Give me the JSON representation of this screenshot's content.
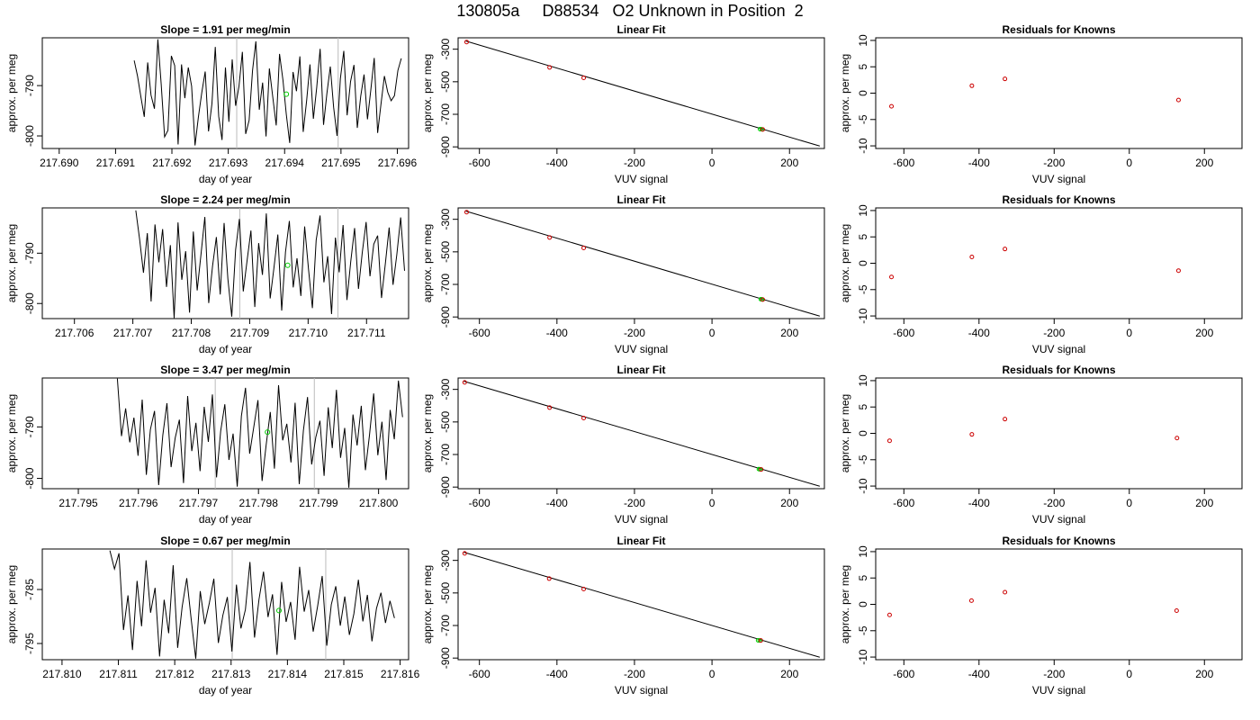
{
  "header": {
    "title": "130805a     D88534   O2 Unknown in Position  2"
  },
  "colors": {
    "trace": "#000000",
    "fit_line": "#000000",
    "known_points": "#cc0000",
    "unknown_points": "#00cc00",
    "frame": "#000000",
    "marker_lines": "#bbbbbb"
  },
  "chart_data": [
    {
      "row": 1,
      "type": "line",
      "title": "Slope =  1.91  per meg/min",
      "xlabel": "day of year",
      "ylabel": "approx. per meg",
      "xlim": [
        217.6897,
        217.6962
      ],
      "ylim": [
        -802.5,
        -780.5
      ],
      "xticks": [
        "217.690",
        "217.691",
        "217.692",
        "217.693",
        "217.694",
        "217.695",
        "217.696"
      ],
      "yticks": [
        "-790",
        "-800"
      ],
      "ytick_values": [
        -790,
        -800
      ],
      "series": [
        {
          "x_start": 217.69133,
          "x_end": 217.69607,
          "values": [
            -785.0,
            -788.1,
            -792.3,
            -796.2,
            -785.4,
            -791.9,
            -794.6,
            -780.8,
            -789.7,
            -800.2,
            -798.9,
            -784.1,
            -786.0,
            -801.7,
            -785.8,
            -792.5,
            -786.4,
            -790.1,
            -801.9,
            -796.3,
            -791.4,
            -787.2,
            -799.1,
            -793.6,
            -782.3,
            -796.1,
            -800.8,
            -786.4,
            -797.2,
            -784.8,
            -794.0,
            -790.2,
            -783.3,
            -799.6,
            -796.9,
            -787.0,
            -781.2,
            -794.8,
            -789.4,
            -800.1,
            -786.6,
            -792.3,
            -797.9,
            -783.7,
            -788.9,
            -795.7,
            -801.4,
            -787.3,
            -791.1,
            -784.2,
            -799.2,
            -793.0,
            -785.8,
            -796.6,
            -790.4,
            -782.7,
            -797.8,
            -791.6,
            -786.2,
            -794.3,
            -800.0,
            -788.6,
            -783.1,
            -795.9,
            -789.2,
            -785.9,
            -798.4,
            -792.1,
            -787.8,
            -796.7,
            -790.9,
            -784.5,
            -799.4,
            -793.7,
            -788.1,
            -791.3,
            -793.0,
            -792.0,
            -787.0,
            -784.6
          ]
        }
      ],
      "unknown_point": {
        "x": 217.69403,
        "y": -791.7
      },
      "marker_lines": [
        217.69315,
        217.69495
      ]
    },
    {
      "row": 1,
      "type": "scatter",
      "title": "Linear Fit",
      "xlabel": "VUV signal",
      "ylabel": "approx. per meg",
      "xlim": [
        -655,
        290
      ],
      "ylim": [
        -910,
        -230
      ],
      "xticks": [
        -600,
        -400,
        -200,
        0,
        200
      ],
      "yticks": [
        -300,
        -500,
        -700,
        -900
      ],
      "fit_line": {
        "x": [
          -635,
          278
        ],
        "y": [
          -250,
          -895
        ]
      },
      "knowns": {
        "x": [
          -633,
          -419,
          -331,
          131
        ],
        "y": [
          -256,
          -412,
          -476,
          -793
        ]
      },
      "unknowns": {
        "x": [
          124,
          128
        ],
        "y": [
          -791,
          -792
        ]
      }
    },
    {
      "row": 1,
      "type": "scatter",
      "title": "Residuals for Knowns",
      "xlabel": "VUV signal",
      "ylabel": "approx. per meg",
      "xlim": [
        -675,
        300
      ],
      "ylim": [
        -10.5,
        10.5
      ],
      "xticks": [
        -600,
        -400,
        -200,
        0,
        200
      ],
      "yticks": [
        10,
        5,
        0,
        -5,
        -10
      ],
      "knowns": {
        "x": [
          -633,
          -419,
          -331,
          131
        ],
        "y": [
          -2.5,
          1.4,
          2.7,
          -1.3
        ]
      }
    },
    {
      "row": 2,
      "type": "line",
      "title": "Slope =  2.24  per meg/min",
      "xlabel": "day of year",
      "ylabel": "approx. per meg",
      "xlim": [
        217.70545,
        217.71172
      ],
      "ylim": [
        -803,
        -781
      ],
      "xticks": [
        "217.706",
        "217.707",
        "217.708",
        "217.709",
        "217.710",
        "217.711"
      ],
      "yticks": [
        "-790",
        "-800"
      ],
      "ytick_values": [
        -790,
        -800
      ],
      "series": [
        {
          "x_start": 217.70705,
          "x_end": 217.71165,
          "values": [
            -781.5,
            -787.2,
            -793.9,
            -786.0,
            -799.6,
            -784.3,
            -791.8,
            -785.2,
            -796.7,
            -788.4,
            -802.9,
            -783.9,
            -795.3,
            -789.6,
            -801.8,
            -785.7,
            -797.4,
            -790.1,
            -782.8,
            -799.9,
            -792.5,
            -786.8,
            -798.2,
            -784.0,
            -795.1,
            -802.6,
            -789.3,
            -783.2,
            -797.6,
            -791.4,
            -785.5,
            -800.7,
            -788.0,
            -794.3,
            -782.1,
            -799.0,
            -792.9,
            -786.3,
            -801.4,
            -789.8,
            -783.6,
            -796.8,
            -791.0,
            -798.5,
            -784.7,
            -793.2,
            -800.9,
            -787.4,
            -782.5,
            -795.8,
            -790.6,
            -802.1,
            -786.9,
            -793.8,
            -784.4,
            -799.3,
            -791.7,
            -785.0,
            -797.1,
            -789.9,
            -783.8,
            -794.6,
            -788.2,
            -786.5,
            -798.9,
            -792.2,
            -784.9,
            -796.3,
            -790.3,
            -782.9,
            -793.5
          ]
        }
      ],
      "unknown_point": {
        "x": 217.70965,
        "y": -792.4
      },
      "marker_lines": [
        217.70883,
        217.71051
      ]
    },
    {
      "row": 2,
      "type": "scatter",
      "title": "Linear Fit",
      "xlabel": "VUV signal",
      "ylabel": "approx. per meg",
      "xlim": [
        -655,
        290
      ],
      "ylim": [
        -910,
        -230
      ],
      "xticks": [
        -600,
        -400,
        -200,
        0,
        200
      ],
      "yticks": [
        -300,
        -500,
        -700,
        -900
      ],
      "fit_line": {
        "x": [
          -635,
          278
        ],
        "y": [
          -250,
          -895
        ]
      },
      "knowns": {
        "x": [
          -633,
          -419,
          -331,
          131
        ],
        "y": [
          -256,
          -412,
          -476,
          -793
        ]
      },
      "unknowns": {
        "x": [
          126,
          129
        ],
        "y": [
          -791,
          -792
        ]
      }
    },
    {
      "row": 2,
      "type": "scatter",
      "title": "Residuals for Knowns",
      "xlabel": "VUV signal",
      "ylabel": "approx. per meg",
      "xlim": [
        -675,
        300
      ],
      "ylim": [
        -10.5,
        10.5
      ],
      "xticks": [
        -600,
        -400,
        -200,
        0,
        200
      ],
      "yticks": [
        10,
        5,
        0,
        -5,
        -10
      ],
      "knowns": {
        "x": [
          -633,
          -419,
          -331,
          131
        ],
        "y": [
          -2.6,
          1.2,
          2.7,
          -1.4
        ]
      }
    },
    {
      "row": 3,
      "type": "line",
      "title": "Slope =  3.47  per meg/min",
      "xlabel": "day of year",
      "ylabel": "approx. per meg",
      "xlim": [
        217.7944,
        217.8005
      ],
      "ylim": [
        -802,
        -780.5
      ],
      "xticks": [
        "217.795",
        "217.796",
        "217.797",
        "217.798",
        "217.799",
        "217.800"
      ],
      "yticks": [
        "-790",
        "-800"
      ],
      "ytick_values": [
        -790,
        -800
      ],
      "series": [
        {
          "x_start": 217.79565,
          "x_end": 217.8004,
          "values": [
            -780.6,
            -791.8,
            -786.4,
            -793.0,
            -788.2,
            -795.6,
            -784.7,
            -799.3,
            -790.5,
            -786.9,
            -801.3,
            -791.6,
            -785.4,
            -797.8,
            -792.1,
            -788.6,
            -800.9,
            -784.0,
            -794.7,
            -789.2,
            -798.6,
            -786.1,
            -792.9,
            -783.7,
            -799.8,
            -790.8,
            -785.6,
            -796.4,
            -791.3,
            -801.6,
            -787.9,
            -782.4,
            -795.2,
            -790.0,
            -784.8,
            -800.5,
            -793.4,
            -787.1,
            -798.1,
            -781.9,
            -792.6,
            -789.4,
            -796.9,
            -785.3,
            -801.1,
            -790.7,
            -784.2,
            -797.3,
            -792.0,
            -788.8,
            -799.5,
            -786.2,
            -794.1,
            -782.8,
            -796.0,
            -790.2,
            -801.8,
            -787.6,
            -793.6,
            -785.9,
            -798.4,
            -791.5,
            -783.5,
            -795.5,
            -789.0,
            -800.3,
            -786.7,
            -792.4,
            -781.0,
            -788.1
          ]
        }
      ],
      "unknown_point": {
        "x": 217.79815,
        "y": -791.0
      },
      "marker_lines": [
        217.79728,
        217.79893
      ]
    },
    {
      "row": 3,
      "type": "scatter",
      "title": "Linear Fit",
      "xlabel": "VUV signal",
      "ylabel": "approx. per meg",
      "xlim": [
        -655,
        290
      ],
      "ylim": [
        -910,
        -230
      ],
      "xticks": [
        -600,
        -400,
        -200,
        0,
        200
      ],
      "yticks": [
        -300,
        -500,
        -700,
        -900
      ],
      "fit_line": {
        "x": [
          -640,
          278
        ],
        "y": [
          -250,
          -895
        ]
      },
      "knowns": {
        "x": [
          -638,
          -419,
          -331,
          127
        ],
        "y": [
          -257,
          -412,
          -476,
          -792
        ]
      },
      "unknowns": {
        "x": [
          121,
          124
        ],
        "y": [
          -790,
          -791
        ]
      }
    },
    {
      "row": 3,
      "type": "scatter",
      "title": "Residuals for Knowns",
      "xlabel": "VUV signal",
      "ylabel": "approx. per meg",
      "xlim": [
        -675,
        300
      ],
      "ylim": [
        -10.5,
        10.5
      ],
      "xticks": [
        -600,
        -400,
        -200,
        0,
        200
      ],
      "yticks": [
        10,
        5,
        0,
        -5,
        -10
      ],
      "knowns": {
        "x": [
          -638,
          -419,
          -331,
          127
        ],
        "y": [
          -1.4,
          -0.2,
          2.7,
          -0.9
        ]
      }
    },
    {
      "row": 4,
      "type": "line",
      "title": "Slope =  0.67  per meg/min",
      "xlabel": "day of year",
      "ylabel": "approx. per meg",
      "xlim": [
        217.80965,
        217.81615
      ],
      "ylim": [
        -798,
        -777.5
      ],
      "xticks": [
        "217.810",
        "217.811",
        "217.812",
        "217.813",
        "217.814",
        "217.815",
        "217.816"
      ],
      "yticks": [
        "-785",
        "-795"
      ],
      "ytick_values": [
        -785,
        -795
      ],
      "series": [
        {
          "x_start": 217.81085,
          "x_end": 217.8159,
          "values": [
            -777.8,
            -781.2,
            -778.3,
            -792.5,
            -786.1,
            -796.2,
            -783.4,
            -791.8,
            -779.6,
            -789.3,
            -784.7,
            -797.4,
            -786.9,
            -793.1,
            -780.5,
            -795.8,
            -788.2,
            -782.9,
            -790.6,
            -797.8,
            -785.3,
            -791.4,
            -787.5,
            -783.0,
            -794.9,
            -789.8,
            -786.4,
            -796.5,
            -784.1,
            -792.2,
            -788.7,
            -779.9,
            -793.9,
            -786.8,
            -781.7,
            -790.1,
            -785.9,
            -797.1,
            -783.6,
            -791.0,
            -787.3,
            -794.3,
            -780.8,
            -789.1,
            -785.1,
            -792.8,
            -788.0,
            -782.5,
            -795.4,
            -787.8,
            -784.4,
            -791.7,
            -786.3,
            -793.4,
            -789.5,
            -783.2,
            -790.9,
            -786.0,
            -794.6,
            -788.5,
            -785.6,
            -791.2,
            -787.1,
            -790.3
          ]
        }
      ],
      "unknown_point": {
        "x": 217.81385,
        "y": -788.9
      },
      "marker_lines": [
        217.81302,
        217.81468
      ]
    },
    {
      "row": 4,
      "type": "scatter",
      "title": "Linear Fit",
      "xlabel": "VUV signal",
      "ylabel": "approx. per meg",
      "xlim": [
        -655,
        290
      ],
      "ylim": [
        -910,
        -230
      ],
      "xticks": [
        -600,
        -400,
        -200,
        0,
        200
      ],
      "yticks": [
        -300,
        -500,
        -700,
        -900
      ],
      "fit_line": {
        "x": [
          -640,
          278
        ],
        "y": [
          -250,
          -895
        ]
      },
      "knowns": {
        "x": [
          -638,
          -420,
          -331,
          126
        ],
        "y": [
          -257,
          -412,
          -476,
          -792
        ]
      },
      "unknowns": {
        "x": [
          119,
          123
        ],
        "y": [
          -791,
          -792
        ]
      }
    },
    {
      "row": 4,
      "type": "scatter",
      "title": "Residuals for Knowns",
      "xlabel": "VUV signal",
      "ylabel": "approx. per meg",
      "xlim": [
        -675,
        300
      ],
      "ylim": [
        -10.5,
        10.5
      ],
      "xticks": [
        -600,
        -400,
        -200,
        0,
        200
      ],
      "yticks": [
        10,
        5,
        0,
        -5,
        -10
      ],
      "knowns": {
        "x": [
          -638,
          -420,
          -331,
          126
        ],
        "y": [
          -2.0,
          0.7,
          2.3,
          -1.2
        ]
      }
    }
  ]
}
